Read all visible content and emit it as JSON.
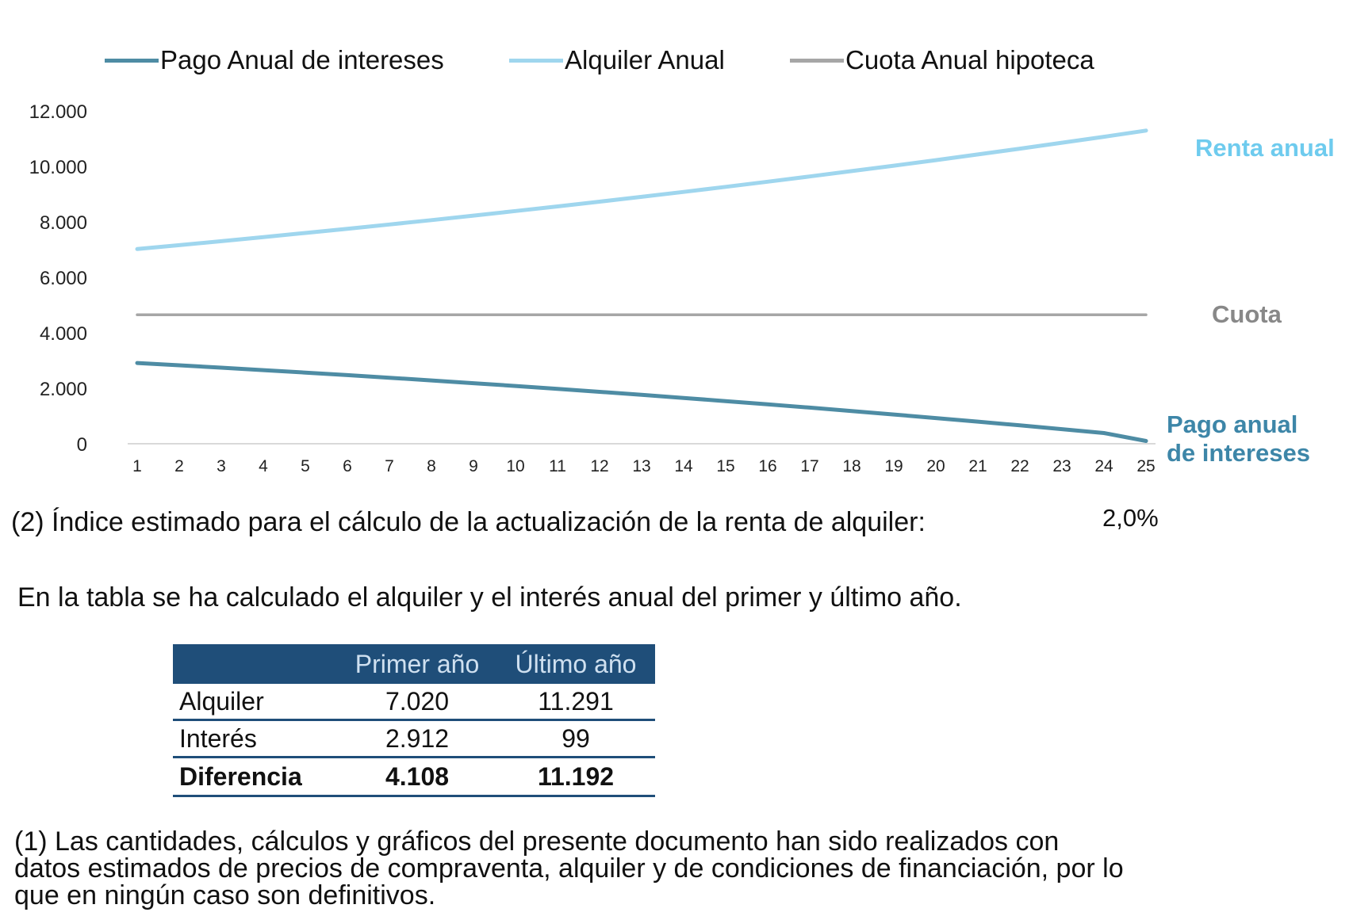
{
  "chart_data": {
    "type": "line",
    "x": [
      1,
      2,
      3,
      4,
      5,
      6,
      7,
      8,
      9,
      10,
      11,
      12,
      13,
      14,
      15,
      16,
      17,
      18,
      19,
      20,
      21,
      22,
      23,
      24,
      25
    ],
    "ylim": [
      0,
      12000
    ],
    "yticks": [
      "12.000",
      "10.000",
      "8.000",
      "6.000",
      "4.000",
      "2.000",
      "0"
    ],
    "ytick_values": [
      12000,
      10000,
      8000,
      6000,
      4000,
      2000,
      0
    ],
    "grid": false,
    "legend_position": "top",
    "series": [
      {
        "name": "Pago Anual de intereses",
        "color": "#4e8ca4",
        "end_label": [
          "Pago anual",
          "de intereses"
        ],
        "end_label_color": "#3d86a8",
        "values": [
          2912,
          2828,
          2743,
          2655,
          2565,
          2473,
          2379,
          2282,
          2183,
          2082,
          1978,
          1872,
          1763,
          1652,
          1538,
          1421,
          1302,
          1180,
          1055,
          927,
          796,
          662,
          525,
          385,
          99
        ]
      },
      {
        "name": "Alquiler Anual",
        "color": "#9fd6ee",
        "end_label": [
          "Renta anual"
        ],
        "end_label_color": "#6ecbee",
        "values": [
          7020,
          7160,
          7304,
          7450,
          7599,
          7751,
          7906,
          8064,
          8225,
          8390,
          8557,
          8728,
          8903,
          9081,
          9263,
          9448,
          9637,
          9830,
          10026,
          10227,
          10431,
          10640,
          10853,
          11070,
          11291
        ]
      },
      {
        "name": "Cuota Anual hipoteca",
        "color": "#a6a6a6",
        "end_label": [
          "Cuota"
        ],
        "end_label_color": "#888888",
        "values": [
          4650,
          4650,
          4650,
          4650,
          4650,
          4650,
          4650,
          4650,
          4650,
          4650,
          4650,
          4650,
          4650,
          4650,
          4650,
          4650,
          4650,
          4650,
          4650,
          4650,
          4650,
          4650,
          4650,
          4650,
          4650
        ]
      }
    ]
  },
  "legend": {
    "items": [
      "Pago Anual de intereses",
      "Alquiler Anual",
      "Cuota Anual hipoteca"
    ]
  },
  "series_labels": {
    "renta": "Renta anual",
    "cuota": "Cuota",
    "intereses_1": "Pago anual",
    "intereses_2": "de intereses"
  },
  "note_2": {
    "text": "(2) Índice estimado para el cálculo de la actualización de la renta de alquiler:",
    "value": "2,0%"
  },
  "intro_text": "En la tabla se ha calculado el alquiler y el interés anual del primer y último año.",
  "table": {
    "headers": [
      "",
      "Primer año",
      "Último año"
    ],
    "rows": [
      [
        "Alquiler",
        "7.020",
        "11.291"
      ],
      [
        "Interés",
        "2.912",
        "99"
      ],
      [
        "Diferencia",
        "4.108",
        "11.192"
      ]
    ]
  },
  "footnote": {
    "line1": "(1)  Las cantidades, cálculos y gráficos del presente documento han sido realizados con",
    "line2": "datos estimados de precios de compraventa, alquiler y de condiciones de financiación, por lo",
    "line3": "que en ningún caso son definitivos."
  }
}
